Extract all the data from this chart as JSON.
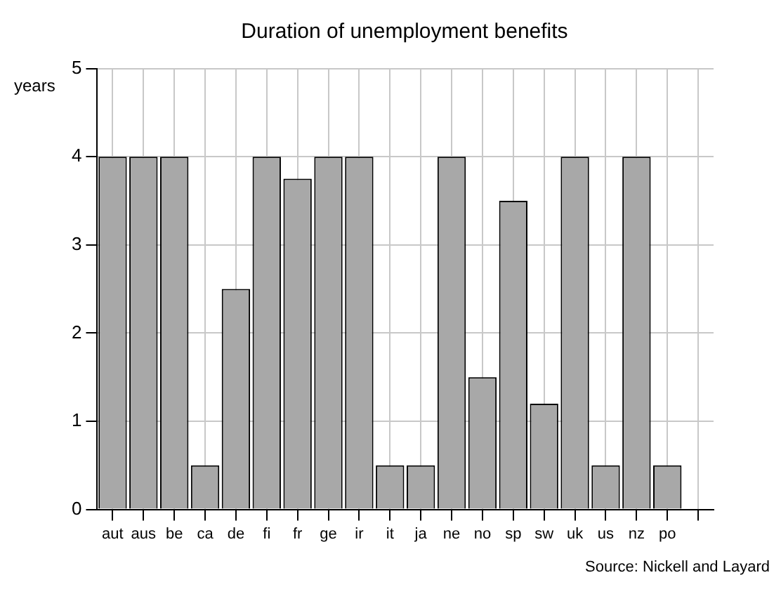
{
  "chart_data": {
    "type": "bar",
    "title": "Duration of unemployment benefits",
    "ylabel": "years",
    "annotations": [
      "Source: Nickell and Layard"
    ],
    "categories": [
      "aut",
      "aus",
      "be",
      "ca",
      "de",
      "fi",
      "fr",
      "ge",
      "ir",
      "it",
      "ja",
      "ne",
      "no",
      "sp",
      "sw",
      "uk",
      "us",
      "nz",
      "po",
      null
    ],
    "values": [
      4,
      4,
      4,
      0.5,
      2.5,
      4,
      3.75,
      4,
      4,
      0.5,
      0.5,
      4,
      1.5,
      3.5,
      1.2,
      4,
      0.5,
      4,
      0.5,
      null
    ],
    "color": "#a8a8a8",
    "ylim": [
      0,
      5
    ],
    "yticks": [
      0,
      1,
      2,
      3,
      4,
      5
    ],
    "grid": true
  }
}
